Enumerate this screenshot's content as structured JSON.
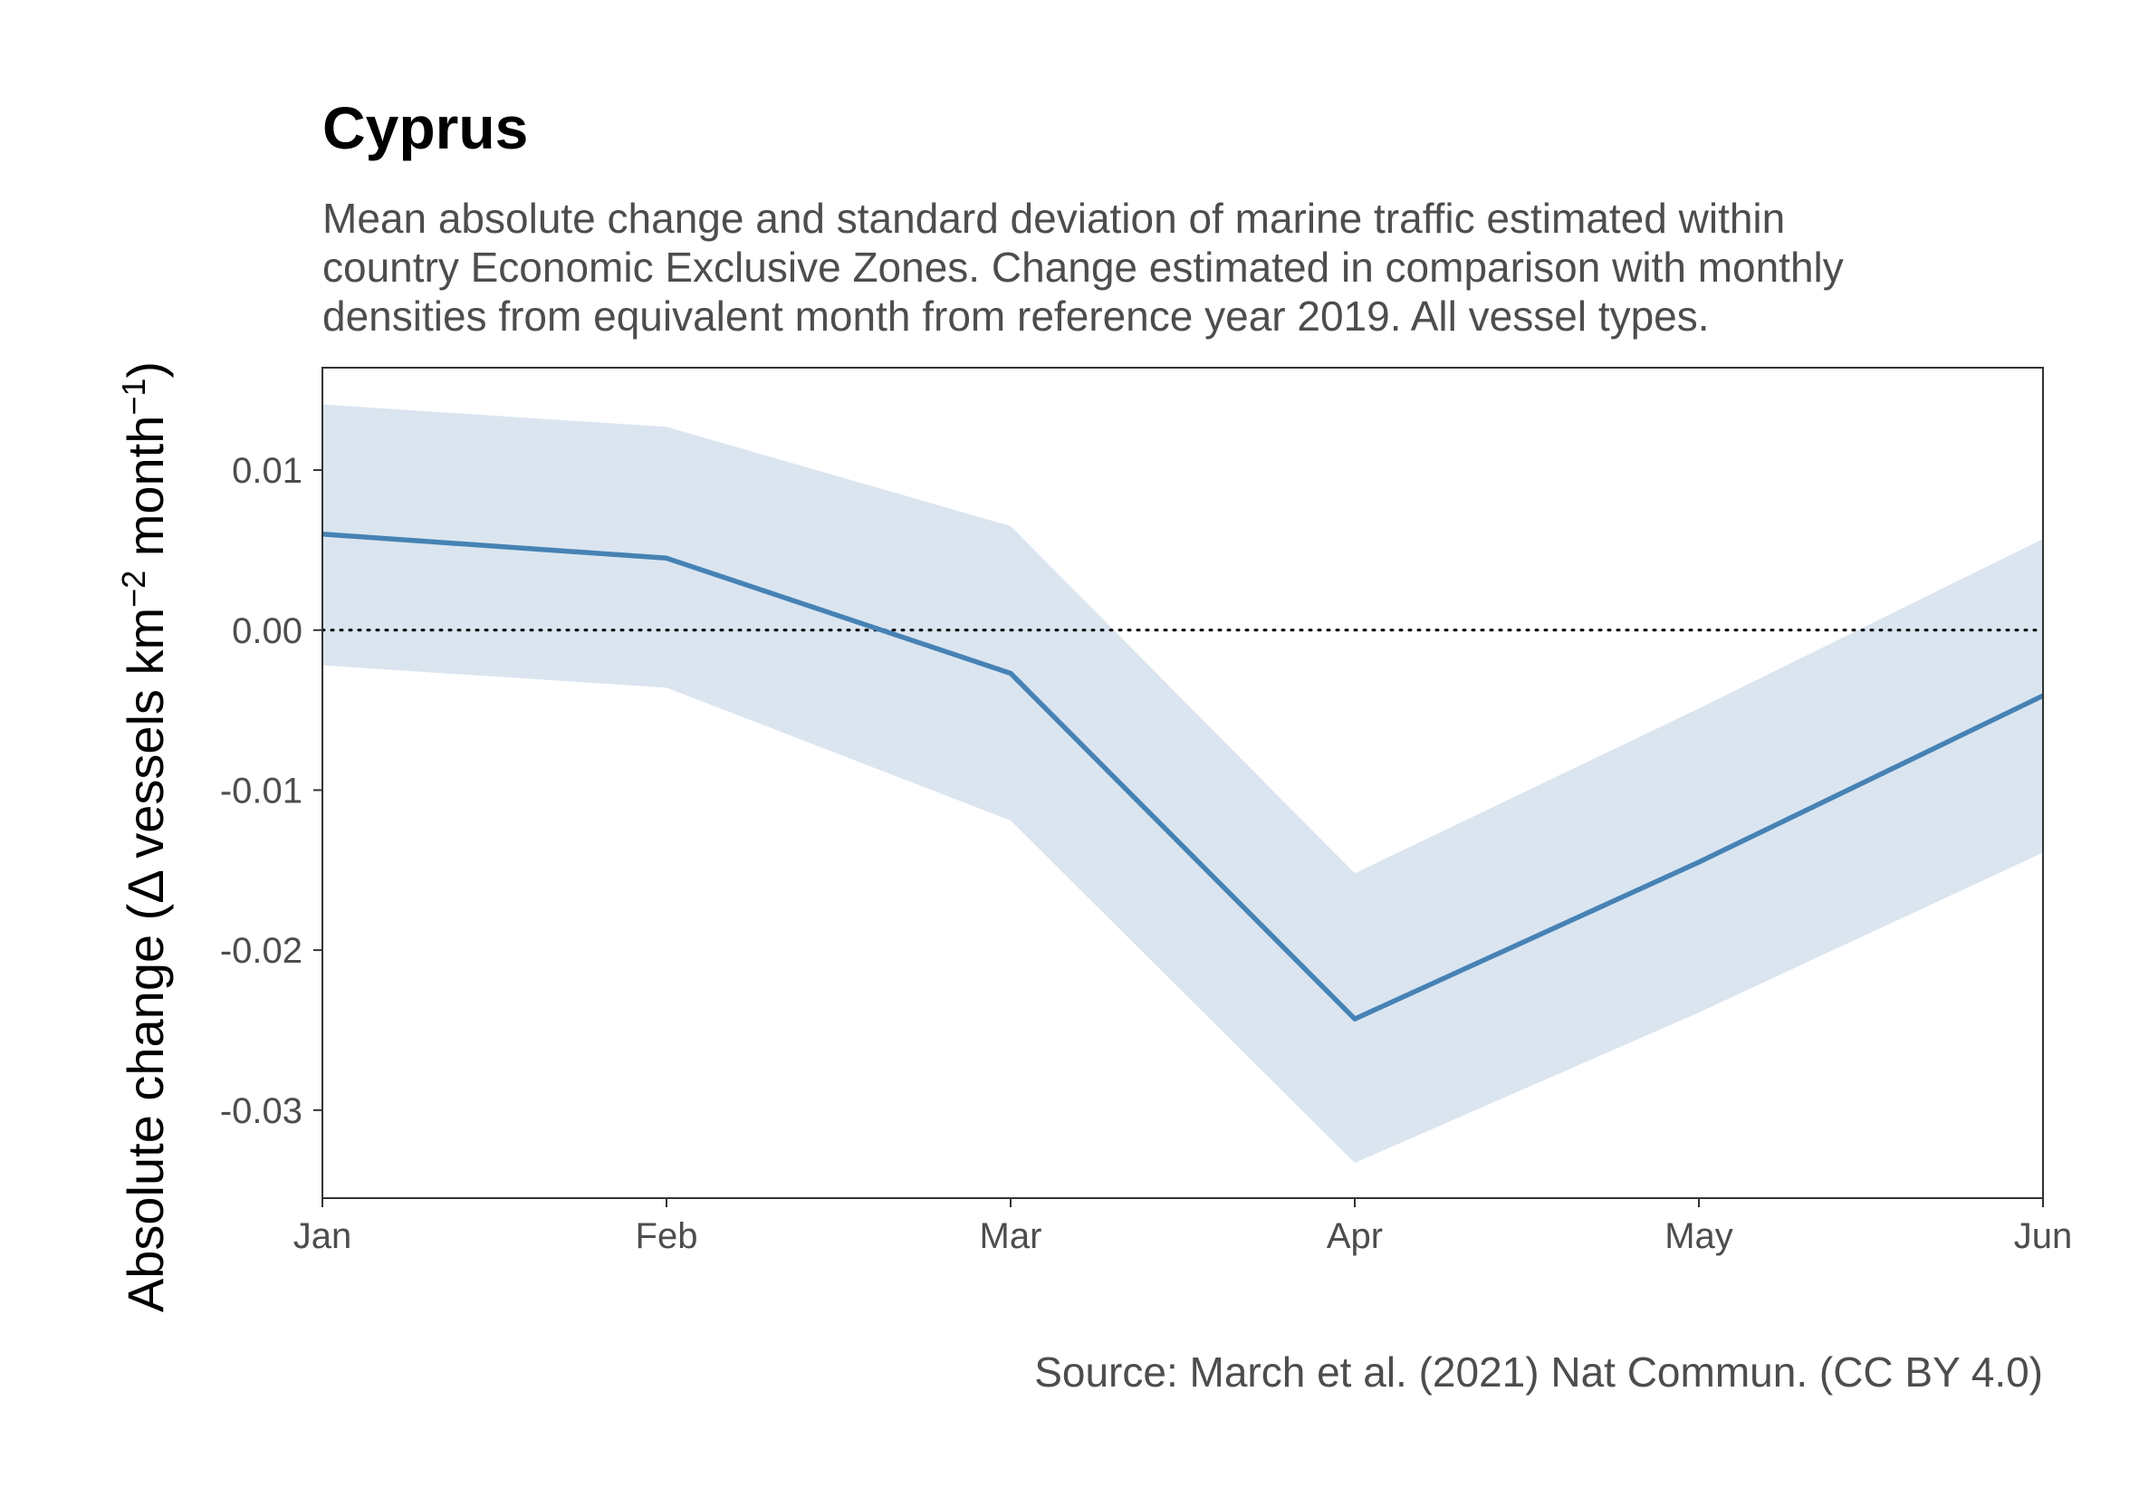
{
  "chart_data": {
    "type": "line",
    "title": "Cyprus",
    "subtitle": [
      "Mean absolute change and standard deviation of marine traffic estimated within",
      "country Economic Exclusive Zones. Change estimated in comparison with monthly",
      "densities from equivalent month from reference year 2019. All vessel types."
    ],
    "ylabel_main": "Absolute change (Δ vessels km",
    "ylabel_sup1": "−2",
    "ylabel_mid": " month",
    "ylabel_sup2": "−1",
    "ylabel_end": ")",
    "caption": "Source: March et al. (2021) Nat Commun. (CC BY 4.0)",
    "x": [
      "Jan",
      "Feb",
      "Mar",
      "Apr",
      "May",
      "Jun"
    ],
    "series": [
      {
        "values": [
          0.006,
          0.0045,
          -0.0027,
          -0.0243,
          -0.0145,
          -0.0041
        ],
        "lower": [
          -0.0022,
          -0.0036,
          -0.0119,
          -0.0333,
          -0.0239,
          -0.0139
        ],
        "upper": [
          0.0141,
          0.0127,
          0.0065,
          -0.0152,
          -0.0049,
          0.0057
        ],
        "color": "#4682b4",
        "band_color": "#dae5f0"
      }
    ],
    "yticks": [
      0.01,
      0.0,
      -0.01,
      -0.02,
      -0.03
    ],
    "ytick_labels": [
      "0.01",
      "0.00",
      "-0.01",
      "-0.02",
      "-0.03"
    ],
    "ylim": [
      -0.0355,
      0.0164
    ],
    "reference_line": 0,
    "grid": false
  }
}
